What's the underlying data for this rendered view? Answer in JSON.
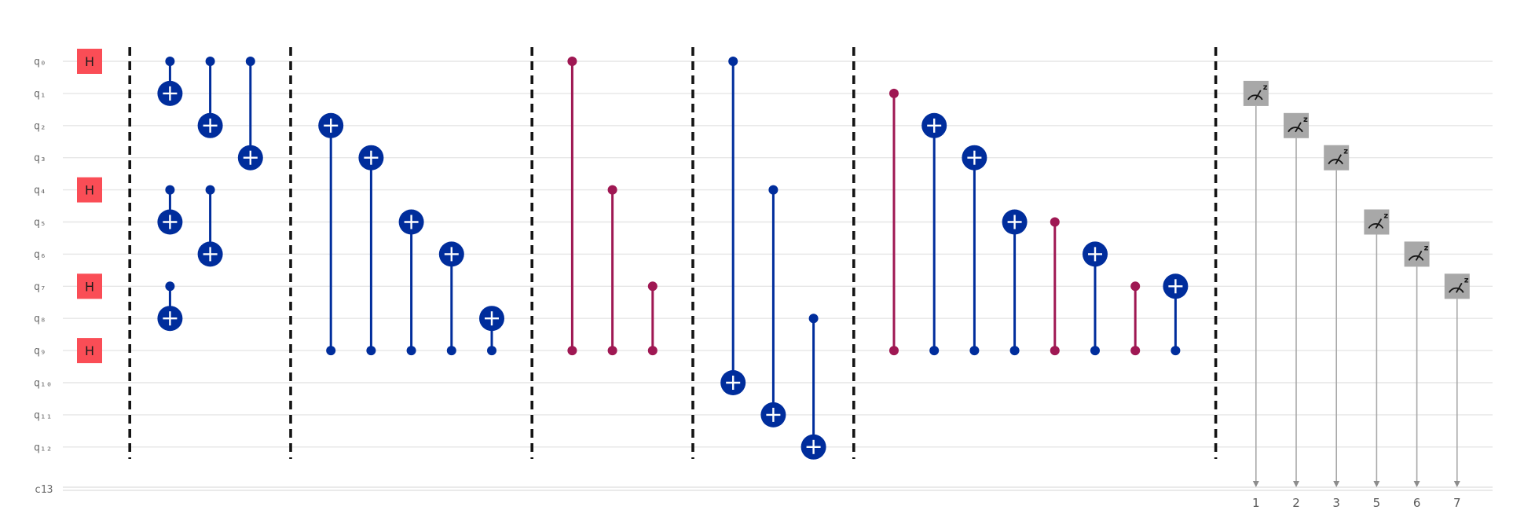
{
  "diagram": {
    "qubits": [
      "q₀",
      "q₁",
      "q₂",
      "q₃",
      "q₄",
      "q₅",
      "q₆",
      "q₇",
      "q₈",
      "q₉",
      "q₁₀",
      "q₁₁",
      "q₁₂"
    ],
    "classical_register": "c13",
    "colors": {
      "cx": "#002d9c",
      "cz": "#9f1853",
      "h": "#fa4d56",
      "measure_box": "#a8a8a8",
      "measure_line": "#a8a8a8",
      "barrier": "#141414"
    },
    "h_gates": [
      {
        "col": 0,
        "q": 0
      },
      {
        "col": 0,
        "q": 4
      },
      {
        "col": 0,
        "q": 7
      },
      {
        "col": 0,
        "q": 9
      }
    ],
    "barriers": [
      1,
      5,
      11,
      15,
      19,
      28
    ],
    "gates": [
      {
        "type": "cx",
        "col": 2,
        "c": 0,
        "t": 1
      },
      {
        "type": "cx",
        "col": 3,
        "c": 0,
        "t": 2
      },
      {
        "type": "cx",
        "col": 4,
        "c": 0,
        "t": 3
      },
      {
        "type": "cx",
        "col": 2,
        "c": 4,
        "t": 5
      },
      {
        "type": "cx",
        "col": 3,
        "c": 4,
        "t": 6
      },
      {
        "type": "cx",
        "col": 2,
        "c": 7,
        "t": 8
      },
      {
        "type": "cx",
        "col": 6,
        "c": 9,
        "t": 2
      },
      {
        "type": "cx",
        "col": 7,
        "c": 9,
        "t": 3
      },
      {
        "type": "cx",
        "col": 8,
        "c": 9,
        "t": 5
      },
      {
        "type": "cx",
        "col": 9,
        "c": 9,
        "t": 6
      },
      {
        "type": "cx",
        "col": 10,
        "c": 9,
        "t": 8
      },
      {
        "type": "cz",
        "col": 12,
        "a": 0,
        "b": 9
      },
      {
        "type": "cz",
        "col": 13,
        "a": 4,
        "b": 9
      },
      {
        "type": "cz",
        "col": 14,
        "a": 7,
        "b": 9
      },
      {
        "type": "cx",
        "col": 16,
        "c": 0,
        "t": 10
      },
      {
        "type": "cx",
        "col": 17,
        "c": 4,
        "t": 11
      },
      {
        "type": "cx",
        "col": 18,
        "c": 8,
        "t": 12
      },
      {
        "type": "cz",
        "col": 20,
        "a": 1,
        "b": 9
      },
      {
        "type": "cx",
        "col": 21,
        "c": 9,
        "t": 2
      },
      {
        "type": "cx",
        "col": 22,
        "c": 9,
        "t": 3
      },
      {
        "type": "cx",
        "col": 23,
        "c": 9,
        "t": 5
      },
      {
        "type": "cz",
        "col": 24,
        "a": 5,
        "b": 9
      },
      {
        "type": "cx",
        "col": 25,
        "c": 9,
        "t": 6
      },
      {
        "type": "cz",
        "col": 26,
        "a": 7,
        "b": 9
      },
      {
        "type": "cx",
        "col": 27,
        "c": 9,
        "t": 7
      }
    ],
    "measurements": [
      {
        "col": 29,
        "q": 1,
        "bit": "1"
      },
      {
        "col": 30,
        "q": 2,
        "bit": "2"
      },
      {
        "col": 31,
        "q": 3,
        "bit": "3"
      },
      {
        "col": 32,
        "q": 5,
        "bit": "5"
      },
      {
        "col": 33,
        "q": 6,
        "bit": "6"
      },
      {
        "col": 34,
        "q": 7,
        "bit": "7"
      }
    ]
  },
  "labels": {
    "h_gate": "H",
    "measure_basis": "z"
  }
}
